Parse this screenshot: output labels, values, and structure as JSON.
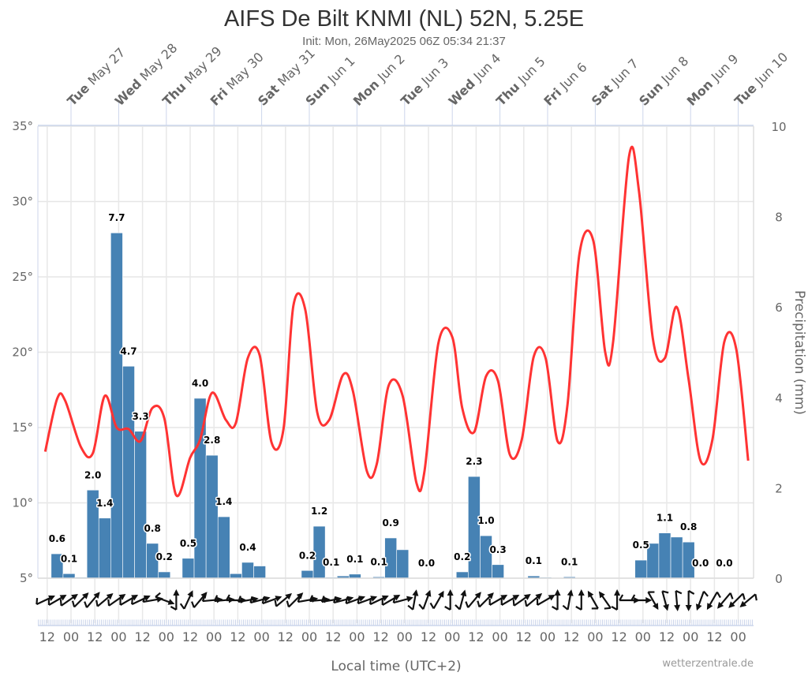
{
  "chart_data": {
    "type": "bar+line",
    "title": "AIFS De Bilt KNMI (NL) 52N, 5.25E",
    "subtitle": "Init: Mon, 26May2025 06Z 05:34 21:37",
    "xlabel": "Local time (UTC+2)",
    "ylabel_right": "Precipitation (mm)",
    "credit": "wetterzentrale.de",
    "grid": true,
    "y_left": {
      "range": [
        5,
        35
      ],
      "ticks": [
        "35°",
        "30°",
        "25°",
        "20°",
        "15°",
        "10°",
        "5°"
      ],
      "tick_values": [
        35,
        30,
        25,
        20,
        15,
        10,
        5
      ]
    },
    "y_right": {
      "range": [
        0,
        10
      ],
      "ticks": [
        "10",
        "8",
        "6",
        "4",
        "2",
        "0"
      ],
      "tick_values": [
        10,
        8,
        6,
        4,
        2,
        0
      ]
    },
    "x_range": [
      "2025-05-26T07:00",
      "2025-06-10T07:00"
    ],
    "day_labels": [
      {
        "wd": "Tue",
        "date": "May 27",
        "t": "2025-05-27T00:00"
      },
      {
        "wd": "Wed",
        "date": "May 28",
        "t": "2025-05-28T00:00"
      },
      {
        "wd": "Thu",
        "date": "May 29",
        "t": "2025-05-29T00:00"
      },
      {
        "wd": "Fri",
        "date": "May 30",
        "t": "2025-05-30T00:00"
      },
      {
        "wd": "Sat",
        "date": "May 31",
        "t": "2025-05-31T00:00"
      },
      {
        "wd": "Sun",
        "date": "Jun 1",
        "t": "2025-06-01T00:00"
      },
      {
        "wd": "Mon",
        "date": "Jun 2",
        "t": "2025-06-02T00:00"
      },
      {
        "wd": "Tue",
        "date": "Jun 3",
        "t": "2025-06-03T00:00"
      },
      {
        "wd": "Wed",
        "date": "Jun 4",
        "t": "2025-06-04T00:00"
      },
      {
        "wd": "Thu",
        "date": "Jun 5",
        "t": "2025-06-05T00:00"
      },
      {
        "wd": "Fri",
        "date": "Jun 6",
        "t": "2025-06-06T00:00"
      },
      {
        "wd": "Sat",
        "date": "Jun 7",
        "t": "2025-06-07T00:00"
      },
      {
        "wd": "Sun",
        "date": "Jun 8",
        "t": "2025-06-08T00:00"
      },
      {
        "wd": "Mon",
        "date": "Jun 9",
        "t": "2025-06-09T00:00"
      },
      {
        "wd": "Tue",
        "date": "Jun 10",
        "t": "2025-06-10T00:00"
      }
    ],
    "x_tick_labels": [
      "12",
      "00",
      "12",
      "00",
      "12",
      "00",
      "12",
      "00",
      "12",
      "00",
      "12",
      "00",
      "12",
      "00",
      "12",
      "00",
      "12",
      "00",
      "12",
      "00",
      "12",
      "00",
      "12",
      "00",
      "12",
      "00",
      "12",
      "00",
      "12",
      "00"
    ],
    "x_tick_start": "2025-05-26T12:00",
    "x_tick_interval_hours": 12,
    "precipitation": {
      "name": "Precipitation (mm)",
      "color": "#4682b4",
      "start_time": "2025-05-26T14:00",
      "interval_hours": 6,
      "values": [
        0.54,
        0.1,
        0.02,
        1.95,
        1.33,
        7.64,
        4.69,
        3.25,
        0.77,
        0.14,
        0,
        0.44,
        3.98,
        2.72,
        1.36,
        0.1,
        0.35,
        0.27,
        0,
        0,
        0,
        0.17,
        1.15,
        0.02,
        0.05,
        0.09,
        0,
        0.03,
        0.89,
        0.63,
        0,
        0,
        0,
        0,
        0.14,
        2.25,
        0.94,
        0.3,
        0,
        0,
        0.05,
        0.02,
        0,
        0.03,
        0,
        0,
        0,
        0,
        0,
        0.4,
        0.77,
        1.0,
        0.91,
        0.8,
        0,
        0,
        0,
        0,
        0
      ],
      "labels": [
        "0.6",
        "0.1",
        "",
        "2.0",
        "1.4",
        "7.7",
        "4.7",
        "3.3",
        "0.8",
        "0.2",
        "",
        "0.5",
        "4.0",
        "2.8",
        "1.4",
        "",
        "0.4",
        "",
        "",
        "",
        "",
        "0.2",
        "1.2",
        "0.1",
        "",
        "0.1",
        "",
        "0.1",
        "0.9",
        "",
        "",
        "0.0",
        "",
        "",
        "0.2",
        "2.3",
        "1.0",
        "0.3",
        "",
        "",
        "0.1",
        "",
        "",
        "0.1",
        "",
        "",
        "",
        "",
        "",
        "0.5",
        "",
        "1.1",
        "",
        "0.8",
        "0.0",
        "",
        "0.0",
        "",
        ""
      ]
    },
    "temperature": {
      "color": "#ff3333",
      "points": [
        [
          "2025-05-26T11:00",
          13.4
        ],
        [
          "2025-05-26T17:00",
          16.9
        ],
        [
          "2025-05-26T21:00",
          16.8
        ],
        [
          "2025-05-27T05:00",
          13.7
        ],
        [
          "2025-05-27T11:00",
          13.3
        ],
        [
          "2025-05-27T17:00",
          17.1
        ],
        [
          "2025-05-27T23:00",
          15.0
        ],
        [
          "2025-05-28T05:00",
          14.9
        ],
        [
          "2025-05-28T11:00",
          14.1
        ],
        [
          "2025-05-28T17:00",
          16.3
        ],
        [
          "2025-05-28T23:00",
          15.6
        ],
        [
          "2025-05-29T05:00",
          10.5
        ],
        [
          "2025-05-29T12:00",
          13.0
        ],
        [
          "2025-05-29T17:00",
          14.2
        ],
        [
          "2025-05-29T23:00",
          17.3
        ],
        [
          "2025-05-30T06:00",
          15.5
        ],
        [
          "2025-05-30T11:00",
          15.3
        ],
        [
          "2025-05-30T17:00",
          19.6
        ],
        [
          "2025-05-30T23:00",
          19.8
        ],
        [
          "2025-05-31T05:00",
          14.0
        ],
        [
          "2025-05-31T11:00",
          14.9
        ],
        [
          "2025-05-31T16:00",
          23.1
        ],
        [
          "2025-05-31T22:00",
          22.8
        ],
        [
          "2025-06-01T04:00",
          16.0
        ],
        [
          "2025-06-01T10:00",
          15.5
        ],
        [
          "2025-06-01T17:00",
          18.5
        ],
        [
          "2025-06-01T22:00",
          17.4
        ],
        [
          "2025-06-02T05:00",
          12.1
        ],
        [
          "2025-06-02T10:00",
          12.6
        ],
        [
          "2025-06-02T16:00",
          17.8
        ],
        [
          "2025-06-02T23:00",
          17.1
        ],
        [
          "2025-06-03T06:00",
          11.3
        ],
        [
          "2025-06-03T10:00",
          12.1
        ],
        [
          "2025-06-03T17:00",
          20.6
        ],
        [
          "2025-06-04T00:00",
          21.0
        ],
        [
          "2025-06-04T05:00",
          16.3
        ],
        [
          "2025-06-04T11:00",
          14.7
        ],
        [
          "2025-06-04T17:00",
          18.4
        ],
        [
          "2025-06-04T23:00",
          18.1
        ],
        [
          "2025-06-05T05:00",
          13.2
        ],
        [
          "2025-06-05T11:00",
          14.2
        ],
        [
          "2025-06-05T17:00",
          19.7
        ],
        [
          "2025-06-05T23:00",
          19.6
        ],
        [
          "2025-06-06T05:00",
          14.1
        ],
        [
          "2025-06-06T10:00",
          16.5
        ],
        [
          "2025-06-06T16:00",
          26.5
        ],
        [
          "2025-06-06T23:00",
          27.4
        ],
        [
          "2025-06-07T05:00",
          20.0
        ],
        [
          "2025-06-07T09:00",
          20.7
        ],
        [
          "2025-06-07T17:00",
          33.0
        ],
        [
          "2025-06-07T22:00",
          30.7
        ],
        [
          "2025-06-08T05:00",
          20.9
        ],
        [
          "2025-06-08T11:00",
          19.6
        ],
        [
          "2025-06-08T17:00",
          23.0
        ],
        [
          "2025-06-08T23:00",
          18.2
        ],
        [
          "2025-06-09T05:00",
          12.8
        ],
        [
          "2025-06-09T11:00",
          14.2
        ],
        [
          "2025-06-09T17:00",
          20.7
        ],
        [
          "2025-06-09T23:00",
          20.2
        ],
        [
          "2025-06-10T05:00",
          12.8
        ]
      ]
    },
    "wind": {
      "start_time": "2025-05-26T11:00",
      "interval_hours": 6,
      "arrow_direction_deg": [
        65,
        60,
        55,
        45,
        40,
        50,
        55,
        60,
        65,
        80,
        110,
        0,
        25,
        40,
        85,
        85,
        90,
        80,
        75,
        70,
        50,
        45,
        80,
        85,
        80,
        75,
        70,
        70,
        65,
        60,
        75,
        10,
        20,
        30,
        0,
        15,
        40,
        45,
        60,
        60,
        55,
        50,
        60,
        0,
        10,
        0,
        -30,
        -35,
        0,
        90,
        90,
        150,
        165,
        175,
        180,
        200,
        210,
        220,
        225,
        230
      ]
    }
  }
}
